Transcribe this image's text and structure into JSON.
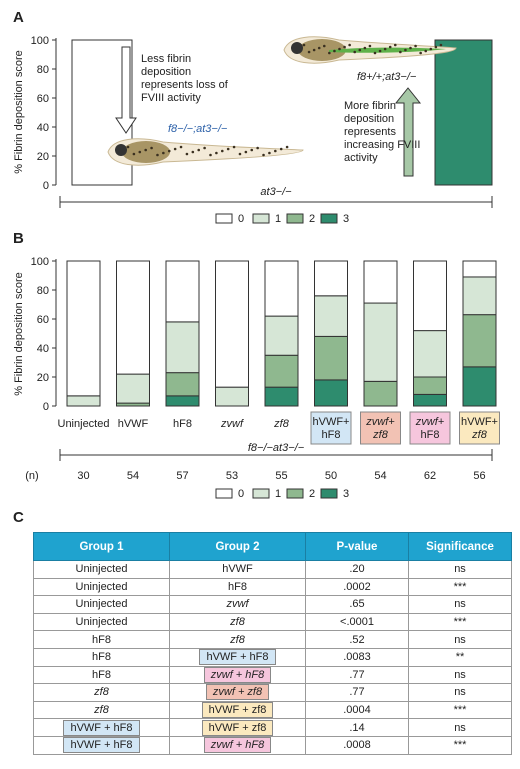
{
  "colors": {
    "c0": "#ffffff",
    "c1": "#d6e6d6",
    "c2": "#8fb88f",
    "c3": "#2e8c6e",
    "blue": "#d2e6f5",
    "salmon": "#f2c2b4",
    "pink": "#f6c6dd",
    "yellow": "#fbe9bf",
    "header": "#1fa3cf",
    "fish_label": "#2a5fa8"
  },
  "panel_a": {
    "letter": "A",
    "ylabel": "% Fibrin deposition score",
    "legend": [
      "0",
      "1",
      "2",
      "3"
    ],
    "chart_data": {
      "type": "bar",
      "categories": [
        "f8−/−;at3−/−",
        "f8+/+;at3−/−"
      ],
      "ylim": [
        0,
        100
      ],
      "yticks": [
        "0",
        "20",
        "40",
        "60",
        "80",
        "100"
      ],
      "series": [
        {
          "name": "0",
          "values": [
            100,
            0
          ]
        },
        {
          "name": "3",
          "values": [
            0,
            100
          ]
        }
      ],
      "group_label": "at3−/−"
    },
    "text_less": [
      "Less fibrin",
      "deposition",
      "represents loss of",
      "FVIII activity"
    ],
    "text_more": [
      "More fibrin",
      "deposition",
      "represents",
      "increasing FVIII",
      "activity"
    ],
    "fish_left_label": "f8−/−;at3−/−",
    "fish_right_label": "f8+/+;at3−/−"
  },
  "panel_b": {
    "letter": "B",
    "ylabel": "% Fibrin deposition score",
    "legend": [
      "0",
      "1",
      "2",
      "3"
    ],
    "chart_data": {
      "type": "bar",
      "stacked": true,
      "categories": [
        "Uninjected",
        "hVWF",
        "hF8",
        "zvwf",
        "zf8",
        "hVWF+ hF8",
        "zvwf+ zf8",
        "zvwf+ hF8",
        "hVWF+ zf8"
      ],
      "ylim": [
        0,
        100
      ],
      "yticks": [
        "0",
        "20",
        "40",
        "60",
        "80",
        "100"
      ],
      "series": [
        {
          "name": "3",
          "values": [
            0,
            0,
            7,
            0,
            13,
            18,
            0,
            8,
            27
          ]
        },
        {
          "name": "2",
          "values": [
            0,
            2,
            16,
            0,
            22,
            30,
            17,
            12,
            36
          ]
        },
        {
          "name": "1",
          "values": [
            7,
            20,
            35,
            13,
            27,
            28,
            54,
            32,
            26
          ]
        },
        {
          "name": "0",
          "values": [
            93,
            78,
            42,
            87,
            38,
            24,
            29,
            48,
            11
          ]
        }
      ],
      "n_values": [
        "30",
        "54",
        "57",
        "53",
        "55",
        "50",
        "54",
        "62",
        "56"
      ],
      "group_label": "f8−/−at3−/−",
      "n_label": "(n)"
    }
  },
  "panel_c": {
    "letter": "C",
    "headers": [
      "Group 1",
      "Group 2",
      "P-value",
      "Significance"
    ],
    "rows": [
      [
        "Uninjected",
        "hVWF",
        ".20",
        "ns"
      ],
      [
        "Uninjected",
        "hF8",
        ".0002",
        "***"
      ],
      [
        "Uninjected",
        "zvwf",
        ".65",
        "ns"
      ],
      [
        "Uninjected",
        "zf8",
        "<.0001",
        "***"
      ],
      [
        "hF8",
        "zf8",
        ".52",
        "ns"
      ],
      [
        "hF8",
        "hVWF + hF8",
        ".0083",
        "**"
      ],
      [
        "hF8",
        "zvwf + hF8",
        ".77",
        "ns"
      ],
      [
        "zf8",
        "zvwf + zf8",
        ".77",
        "ns"
      ],
      [
        "zf8",
        "hVWF + zf8",
        ".0004",
        "***"
      ],
      [
        "hVWF + hF8",
        "hVWF + zf8",
        ".14",
        "ns"
      ],
      [
        "hVWF + hF8",
        "zvwf + hF8",
        ".0008",
        "***"
      ]
    ]
  }
}
